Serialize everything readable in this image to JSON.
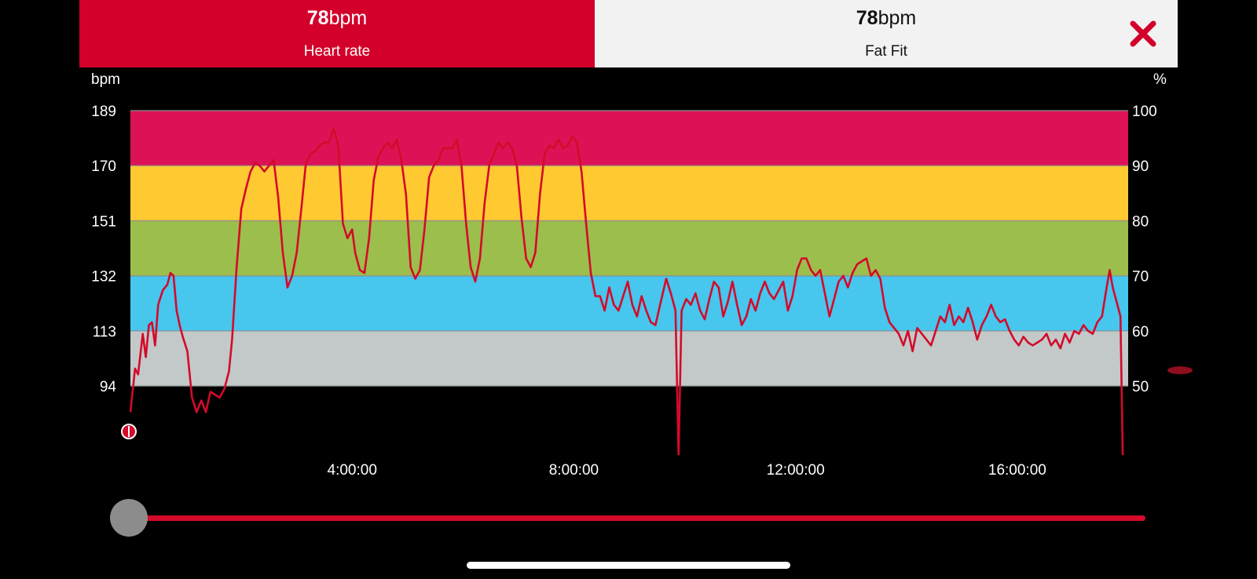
{
  "tabs": [
    {
      "value": "78",
      "unit": "bpm",
      "label": "Heart rate"
    },
    {
      "value": "78",
      "unit": "bpm",
      "label": "Fat Fit"
    }
  ],
  "close_icon": "close-icon",
  "colors": {
    "accent": "#d2002a",
    "zone5": "#dd1256",
    "zone4": "#ffc931",
    "zone3": "#9cbe4c",
    "zone2": "#47c6ee",
    "zone1": "#c3c9c9",
    "line": "#d40a2a"
  },
  "slider": {
    "position": 0
  },
  "chart_data": {
    "type": "line",
    "title": "",
    "y_left_label": "bpm",
    "y_right_label": "%",
    "y_left_ticks": [
      94,
      113,
      132,
      151,
      170,
      189
    ],
    "y_right_ticks": [
      50,
      60,
      70,
      80,
      90,
      100
    ],
    "ylim": [
      79,
      205
    ],
    "xlim": [
      0,
      64800
    ],
    "x_ticks": [
      {
        "t": 14400,
        "label": "4:00:00"
      },
      {
        "t": 28800,
        "label": "8:00:00"
      },
      {
        "t": 43200,
        "label": "12:00:00"
      },
      {
        "t": 57600,
        "label": "16:00:00"
      }
    ],
    "zones": [
      {
        "from": 94,
        "to": 113,
        "color": "#c3c9c9"
      },
      {
        "from": 113,
        "to": 132,
        "color": "#47c6ee"
      },
      {
        "from": 132,
        "to": 151,
        "color": "#9cbe4c"
      },
      {
        "from": 151,
        "to": 170,
        "color": "#ffc931"
      },
      {
        "from": 170,
        "to": 189,
        "color": "#dd1256"
      }
    ],
    "series": [
      {
        "values": [
          [
            0,
            85
          ],
          [
            300,
            100
          ],
          [
            500,
            98
          ],
          [
            800,
            112
          ],
          [
            1000,
            104
          ],
          [
            1200,
            115
          ],
          [
            1400,
            116
          ],
          [
            1600,
            108
          ],
          [
            1800,
            122
          ],
          [
            2100,
            127
          ],
          [
            2400,
            129
          ],
          [
            2600,
            133
          ],
          [
            2800,
            132
          ],
          [
            3000,
            120
          ],
          [
            3200,
            115
          ],
          [
            3400,
            111
          ],
          [
            3700,
            106
          ],
          [
            4000,
            90
          ],
          [
            4300,
            85
          ],
          [
            4600,
            89
          ],
          [
            4900,
            85
          ],
          [
            5200,
            92
          ],
          [
            5500,
            91
          ],
          [
            5800,
            90
          ],
          [
            6100,
            93
          ],
          [
            6400,
            99
          ],
          [
            6600,
            110
          ],
          [
            6900,
            135
          ],
          [
            7200,
            155
          ],
          [
            7500,
            162
          ],
          [
            7800,
            168
          ],
          [
            8100,
            171
          ],
          [
            8400,
            170
          ],
          [
            8700,
            168
          ],
          [
            9000,
            170
          ],
          [
            9300,
            172
          ],
          [
            9600,
            159
          ],
          [
            9900,
            140
          ],
          [
            10200,
            128
          ],
          [
            10500,
            132
          ],
          [
            10800,
            140
          ],
          [
            11100,
            155
          ],
          [
            11400,
            171
          ],
          [
            11700,
            174
          ],
          [
            12000,
            175
          ],
          [
            12300,
            177
          ],
          [
            12600,
            178
          ],
          [
            12900,
            178
          ],
          [
            13200,
            183
          ],
          [
            13500,
            177
          ],
          [
            13800,
            150
          ],
          [
            14100,
            145
          ],
          [
            14400,
            148
          ],
          [
            14600,
            140
          ],
          [
            14900,
            134
          ],
          [
            15200,
            133
          ],
          [
            15500,
            145
          ],
          [
            15800,
            165
          ],
          [
            16100,
            173
          ],
          [
            16400,
            176
          ],
          [
            16700,
            178
          ],
          [
            17000,
            176
          ],
          [
            17300,
            179
          ],
          [
            17600,
            172
          ],
          [
            17900,
            160
          ],
          [
            18200,
            135
          ],
          [
            18500,
            131
          ],
          [
            18800,
            134
          ],
          [
            19100,
            148
          ],
          [
            19400,
            166
          ],
          [
            19700,
            170
          ],
          [
            20000,
            172
          ],
          [
            20300,
            176
          ],
          [
            20600,
            176
          ],
          [
            20900,
            176
          ],
          [
            21200,
            179
          ],
          [
            21500,
            170
          ],
          [
            21800,
            150
          ],
          [
            22100,
            135
          ],
          [
            22400,
            130
          ],
          [
            22700,
            138
          ],
          [
            23000,
            157
          ],
          [
            23300,
            170
          ],
          [
            23600,
            174
          ],
          [
            23900,
            178
          ],
          [
            24200,
            176
          ],
          [
            24500,
            178
          ],
          [
            24800,
            176
          ],
          [
            25100,
            170
          ],
          [
            25400,
            152
          ],
          [
            25700,
            138
          ],
          [
            26000,
            135
          ],
          [
            26300,
            140
          ],
          [
            26600,
            160
          ],
          [
            26900,
            174
          ],
          [
            27200,
            177
          ],
          [
            27500,
            176
          ],
          [
            27800,
            179
          ],
          [
            28100,
            176
          ],
          [
            28400,
            177
          ],
          [
            28700,
            180
          ],
          [
            29000,
            178
          ],
          [
            29300,
            168
          ],
          [
            29600,
            150
          ],
          [
            29900,
            133
          ],
          [
            30200,
            125
          ],
          [
            30500,
            125
          ],
          [
            30800,
            120
          ],
          [
            31100,
            128
          ],
          [
            31400,
            122
          ],
          [
            31700,
            120
          ],
          [
            32000,
            125
          ],
          [
            32300,
            130
          ],
          [
            32600,
            122
          ],
          [
            32900,
            118
          ],
          [
            33200,
            125
          ],
          [
            33500,
            120
          ],
          [
            33800,
            116
          ],
          [
            34100,
            115
          ],
          [
            34400,
            122
          ],
          [
            34800,
            131
          ],
          [
            35100,
            126
          ],
          [
            35400,
            120
          ],
          [
            35600,
            10
          ],
          [
            35800,
            120
          ],
          [
            36100,
            124
          ],
          [
            36400,
            122
          ],
          [
            36700,
            126
          ],
          [
            37000,
            120
          ],
          [
            37300,
            117
          ],
          [
            37600,
            124
          ],
          [
            37900,
            130
          ],
          [
            38200,
            128
          ],
          [
            38500,
            118
          ],
          [
            38800,
            123
          ],
          [
            39100,
            130
          ],
          [
            39400,
            122
          ],
          [
            39700,
            115
          ],
          [
            40000,
            118
          ],
          [
            40300,
            124
          ],
          [
            40600,
            120
          ],
          [
            40900,
            126
          ],
          [
            41200,
            130
          ],
          [
            41500,
            126
          ],
          [
            41800,
            124
          ],
          [
            42100,
            127
          ],
          [
            42400,
            130
          ],
          [
            42700,
            120
          ],
          [
            43000,
            125
          ],
          [
            43300,
            134
          ],
          [
            43600,
            138
          ],
          [
            43900,
            138
          ],
          [
            44200,
            134
          ],
          [
            44500,
            132
          ],
          [
            44800,
            134
          ],
          [
            45100,
            126
          ],
          [
            45400,
            118
          ],
          [
            45700,
            124
          ],
          [
            46000,
            130
          ],
          [
            46300,
            132
          ],
          [
            46600,
            128
          ],
          [
            46900,
            133
          ],
          [
            47200,
            136
          ],
          [
            47500,
            137
          ],
          [
            47800,
            138
          ],
          [
            48100,
            132
          ],
          [
            48400,
            134
          ],
          [
            48700,
            131
          ],
          [
            49000,
            121
          ],
          [
            49300,
            116
          ],
          [
            49600,
            114
          ],
          [
            49900,
            112
          ],
          [
            50200,
            108
          ],
          [
            50500,
            113
          ],
          [
            50800,
            106
          ],
          [
            51100,
            114
          ],
          [
            51400,
            112
          ],
          [
            51700,
            110
          ],
          [
            52000,
            108
          ],
          [
            52300,
            113
          ],
          [
            52600,
            118
          ],
          [
            52900,
            116
          ],
          [
            53200,
            122
          ],
          [
            53500,
            115
          ],
          [
            53800,
            118
          ],
          [
            54100,
            116
          ],
          [
            54400,
            121
          ],
          [
            54700,
            116
          ],
          [
            55000,
            110
          ],
          [
            55300,
            115
          ],
          [
            55600,
            118
          ],
          [
            55900,
            122
          ],
          [
            56200,
            118
          ],
          [
            56500,
            116
          ],
          [
            56800,
            117
          ],
          [
            57100,
            113
          ],
          [
            57400,
            110
          ],
          [
            57700,
            108
          ],
          [
            58000,
            111
          ],
          [
            58300,
            109
          ],
          [
            58600,
            108
          ],
          [
            58900,
            109
          ],
          [
            59200,
            110
          ],
          [
            59500,
            112
          ],
          [
            59800,
            108
          ],
          [
            60100,
            110
          ],
          [
            60400,
            107
          ],
          [
            60700,
            112
          ],
          [
            61000,
            109
          ],
          [
            61300,
            113
          ],
          [
            61600,
            112
          ],
          [
            61900,
            115
          ],
          [
            62200,
            113
          ],
          [
            62500,
            112
          ],
          [
            62800,
            116
          ],
          [
            63100,
            118
          ],
          [
            63400,
            128
          ],
          [
            63600,
            134
          ],
          [
            63800,
            128
          ],
          [
            64100,
            122
          ],
          [
            64300,
            118
          ],
          [
            64450,
            15
          ]
        ]
      }
    ],
    "cursor_icon": "cursor-marker-icon",
    "right_marker": 53
  }
}
